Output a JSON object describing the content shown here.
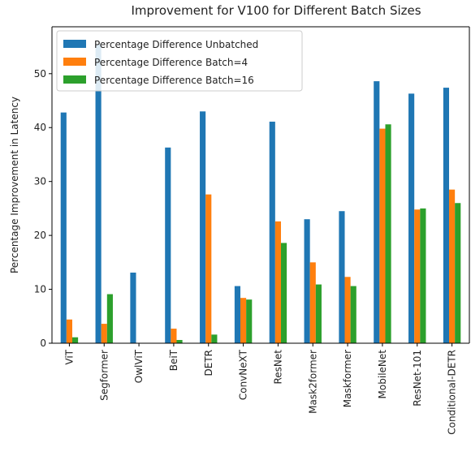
{
  "chart_data": {
    "type": "bar",
    "title": "Improvement for V100 for Different Batch Sizes",
    "y_label": "Percentage Improvement in Latency",
    "categories": [
      "ViT",
      "Segformer",
      "OwlViT",
      "BeiT",
      "DETR",
      "ConvNeXT",
      "ResNet",
      "Mask2former",
      "Maskformer",
      "MobileNet",
      "ResNet-101",
      "Conditional-DETR"
    ],
    "series": [
      {
        "name": "Percentage Difference Unbatched",
        "color": "#1f77b4",
        "values": [
          42.8,
          55.5,
          13.1,
          36.3,
          43.0,
          10.6,
          41.1,
          23.0,
          24.5,
          48.6,
          46.3,
          47.4
        ]
      },
      {
        "name": "Percentage Difference Batch=4",
        "color": "#ff7f0e",
        "values": [
          4.4,
          3.6,
          null,
          2.7,
          27.6,
          8.4,
          22.6,
          15.0,
          12.3,
          39.8,
          24.8,
          28.5
        ]
      },
      {
        "name": "Percentage Difference Batch=16",
        "color": "#2ca02c",
        "values": [
          1.1,
          9.1,
          null,
          0.6,
          1.6,
          8.1,
          18.6,
          10.9,
          10.6,
          40.6,
          25.0,
          26.0
        ]
      }
    ],
    "ylim": [
      0,
      58.7
    ],
    "yticks": [
      0,
      10,
      20,
      30,
      40,
      50
    ],
    "legend": "upper left"
  }
}
